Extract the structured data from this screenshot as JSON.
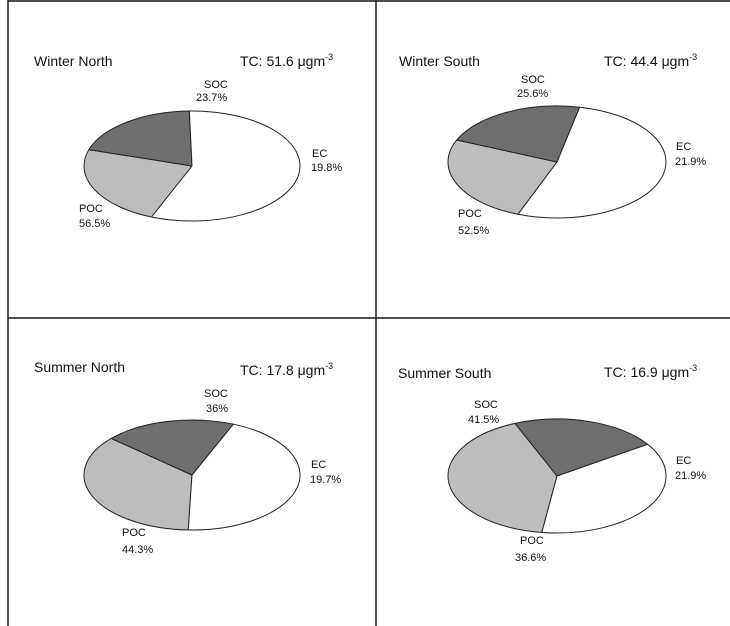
{
  "chart_data": [
    {
      "type": "pie",
      "title": "Winter North",
      "total": {
        "label": "TC: 51.6 ",
        "mu": "μ",
        "unit": "gm",
        "exp": "-3"
      },
      "slices": [
        {
          "name": "SOC",
          "value": 23.7,
          "text": "23.7%",
          "color": "#bdbdbd"
        },
        {
          "name": "EC",
          "value": 19.8,
          "text": "19.8%",
          "color": "#6e6e6e"
        },
        {
          "name": "POC",
          "value": 56.5,
          "text": "56.5%",
          "color": "#ffffff"
        }
      ]
    },
    {
      "type": "pie",
      "title": "Winter South",
      "total": {
        "label": "TC: 44.4 ",
        "mu": "μ",
        "unit": "gm",
        "exp": "-3"
      },
      "slices": [
        {
          "name": "SOC",
          "value": 25.6,
          "text": "25.6%",
          "color": "#bdbdbd"
        },
        {
          "name": "EC",
          "value": 21.9,
          "text": "21.9%",
          "color": "#6e6e6e"
        },
        {
          "name": "POC",
          "value": 52.5,
          "text": "52.5%",
          "color": "#ffffff"
        }
      ]
    },
    {
      "type": "pie",
      "title": "Summer North",
      "total": {
        "label": "TC: 17.8 ",
        "mu": "μ",
        "unit": "gm",
        "exp": "-3"
      },
      "slices": [
        {
          "name": "SOC",
          "value": 36,
          "text": "36%",
          "color": "#bdbdbd"
        },
        {
          "name": "EC",
          "value": 19.7,
          "text": "19.7%",
          "color": "#6e6e6e"
        },
        {
          "name": "POC",
          "value": 44.3,
          "text": "44.3%",
          "color": "#ffffff"
        }
      ]
    },
    {
      "type": "pie",
      "title": "Summer South",
      "total": {
        "label": "TC: 16.9 ",
        "mu": "μ",
        "unit": "gm",
        "exp": "-3"
      },
      "slices": [
        {
          "name": "SOC",
          "value": 41.5,
          "text": "41.5%",
          "color": "#bdbdbd"
        },
        {
          "name": "EC",
          "value": 21.9,
          "text": "21.9%",
          "color": "#6e6e6e"
        },
        {
          "name": "POC",
          "value": 36.6,
          "text": "36.6%",
          "color": "#ffffff"
        }
      ]
    }
  ]
}
